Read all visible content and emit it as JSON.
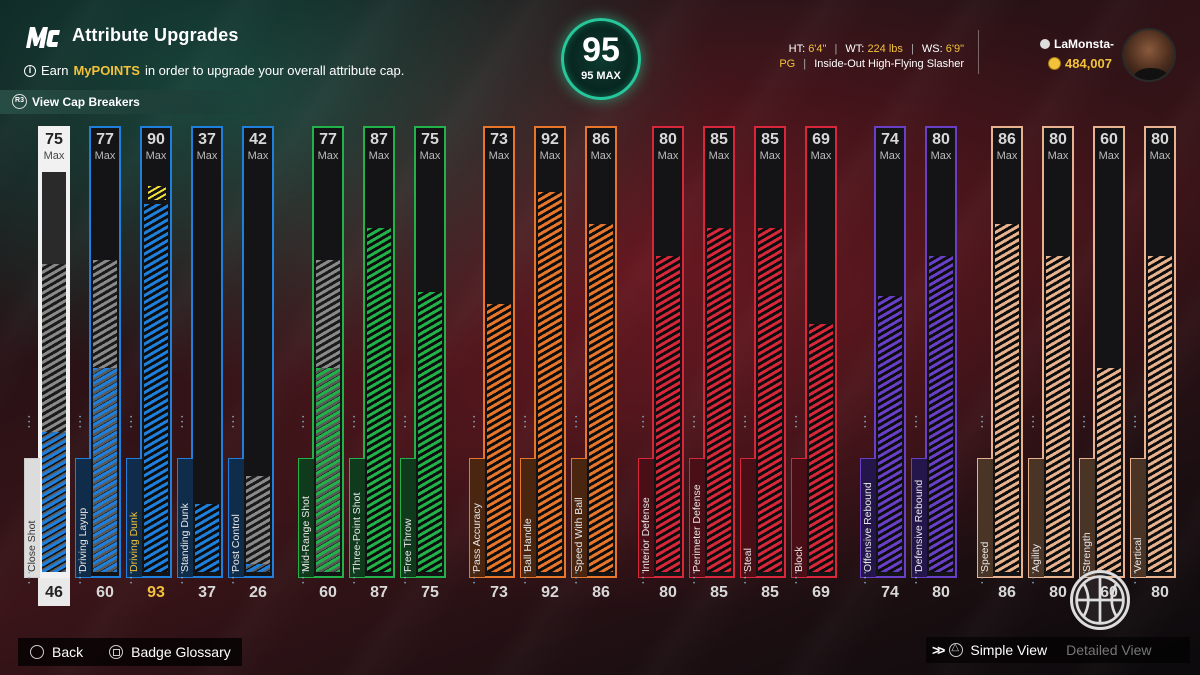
{
  "header": {
    "logo": "MC",
    "title": "Attribute Upgrades",
    "subtitle_pre": "Earn",
    "subtitle_highlight": "MyPOINTS",
    "subtitle_post": "in order to upgrade your overall attribute cap.",
    "cap_breakers_label": "View Cap Breakers",
    "cap_breakers_button": "R3"
  },
  "overall": {
    "value": "95",
    "max_label": "95 MAX",
    "accent": "#27c79b"
  },
  "player": {
    "ht_label": "HT:",
    "ht": "6'4\"",
    "wt_label": "WT:",
    "wt": "224 lbs",
    "ws_label": "WS:",
    "ws": "6'9\"",
    "position": "PG",
    "archetype": "Inside-Out High-Flying Slasher",
    "username": "LaMonsta-",
    "vc": "484,007"
  },
  "attributes": [
    {
      "name": "Close Shot",
      "current": 46,
      "max": 75,
      "max_label": "Max",
      "group": "finishing",
      "selected": true,
      "fill_color": 0.35,
      "fill_grey": 0.77
    },
    {
      "name": "Driving Layup",
      "current": 60,
      "max": 77,
      "max_label": "Max",
      "group": "finishing",
      "fill_color": 0.51,
      "fill_grey": 0.78
    },
    {
      "name": "Driving Dunk",
      "current": 93,
      "max": 90,
      "max_label": "Max",
      "group": "finishing",
      "boosted": true,
      "fill_color": 0.92,
      "fill_grey": 0
    },
    {
      "name": "Standing Dunk",
      "current": 37,
      "max": 37,
      "max_label": "Max",
      "group": "finishing",
      "fill_color": 0.17,
      "fill_grey": 0
    },
    {
      "name": "Post Control",
      "current": 26,
      "max": 42,
      "max_label": "Max",
      "group": "finishing",
      "fill_color": 0.02,
      "fill_grey": 0.24
    },
    {
      "name": "Mid-Range Shot",
      "current": 60,
      "max": 77,
      "max_label": "Max",
      "group": "shooting",
      "fill_color": 0.51,
      "fill_grey": 0.78
    },
    {
      "name": "Three-Point Shot",
      "current": 87,
      "max": 87,
      "max_label": "Max",
      "group": "shooting",
      "fill_color": 0.86,
      "fill_grey": 0
    },
    {
      "name": "Free Throw",
      "current": 75,
      "max": 75,
      "max_label": "Max",
      "group": "shooting",
      "fill_color": 0.7,
      "fill_grey": 0
    },
    {
      "name": "Pass Accuracy",
      "current": 73,
      "max": 73,
      "max_label": "Max",
      "group": "playmaking",
      "fill_color": 0.67,
      "fill_grey": 0
    },
    {
      "name": "Ball Handle",
      "current": 92,
      "max": 92,
      "max_label": "Max",
      "group": "playmaking",
      "fill_color": 0.95,
      "fill_grey": 0
    },
    {
      "name": "Speed With Ball",
      "current": 86,
      "max": 86,
      "max_label": "Max",
      "group": "playmaking",
      "fill_color": 0.87,
      "fill_grey": 0
    },
    {
      "name": "Interior Defense",
      "current": 80,
      "max": 80,
      "max_label": "Max",
      "group": "defense",
      "fill_color": 0.79,
      "fill_grey": 0
    },
    {
      "name": "Perimeter Defense",
      "current": 85,
      "max": 85,
      "max_label": "Max",
      "group": "defense",
      "fill_color": 0.86,
      "fill_grey": 0
    },
    {
      "name": "Steal",
      "current": 85,
      "max": 85,
      "max_label": "Max",
      "group": "defense",
      "fill_color": 0.86,
      "fill_grey": 0
    },
    {
      "name": "Block",
      "current": 69,
      "max": 69,
      "max_label": "Max",
      "group": "defense",
      "fill_color": 0.62,
      "fill_grey": 0
    },
    {
      "name": "Offensive Rebound",
      "current": 74,
      "max": 74,
      "max_label": "Max",
      "group": "rebounding",
      "fill_color": 0.69,
      "fill_grey": 0
    },
    {
      "name": "Defensive Rebound",
      "current": 80,
      "max": 80,
      "max_label": "Max",
      "group": "rebounding",
      "fill_color": 0.79,
      "fill_grey": 0
    },
    {
      "name": "Speed",
      "current": 86,
      "max": 86,
      "max_label": "Max",
      "group": "physicals",
      "fill_color": 0.87,
      "fill_grey": 0
    },
    {
      "name": "Agility",
      "current": 80,
      "max": 80,
      "max_label": "Max",
      "group": "physicals",
      "fill_color": 0.79,
      "fill_grey": 0
    },
    {
      "name": "Strength",
      "current": 60,
      "max": 60,
      "max_label": "Max",
      "group": "physicals",
      "fill_color": 0.51,
      "fill_grey": 0
    },
    {
      "name": "Vertical",
      "current": 80,
      "max": 80,
      "max_label": "Max",
      "group": "physicals",
      "fill_color": 0.79,
      "fill_grey": 0
    }
  ],
  "group_colors": {
    "finishing": "#1f7fdc",
    "shooting": "#22b24a",
    "playmaking": "#e8762a",
    "defense": "#d8263a",
    "rebounding": "#6a3fc8",
    "physicals": "#e8b28e"
  },
  "group_colors_dark": {
    "finishing": "#0f2c4a",
    "shooting": "#0f3a1c",
    "playmaking": "#4a2610",
    "defense": "#4a0f16",
    "rebounding": "#24164a",
    "physicals": "#4a3426"
  },
  "boost_color": "#f4e23a",
  "highlight_color": "#f2c23a",
  "footer": {
    "back_label": "Back",
    "glossary_label": "Badge Glossary",
    "simple_view_label": "Simple View",
    "detailed_view_label": "Detailed View"
  }
}
